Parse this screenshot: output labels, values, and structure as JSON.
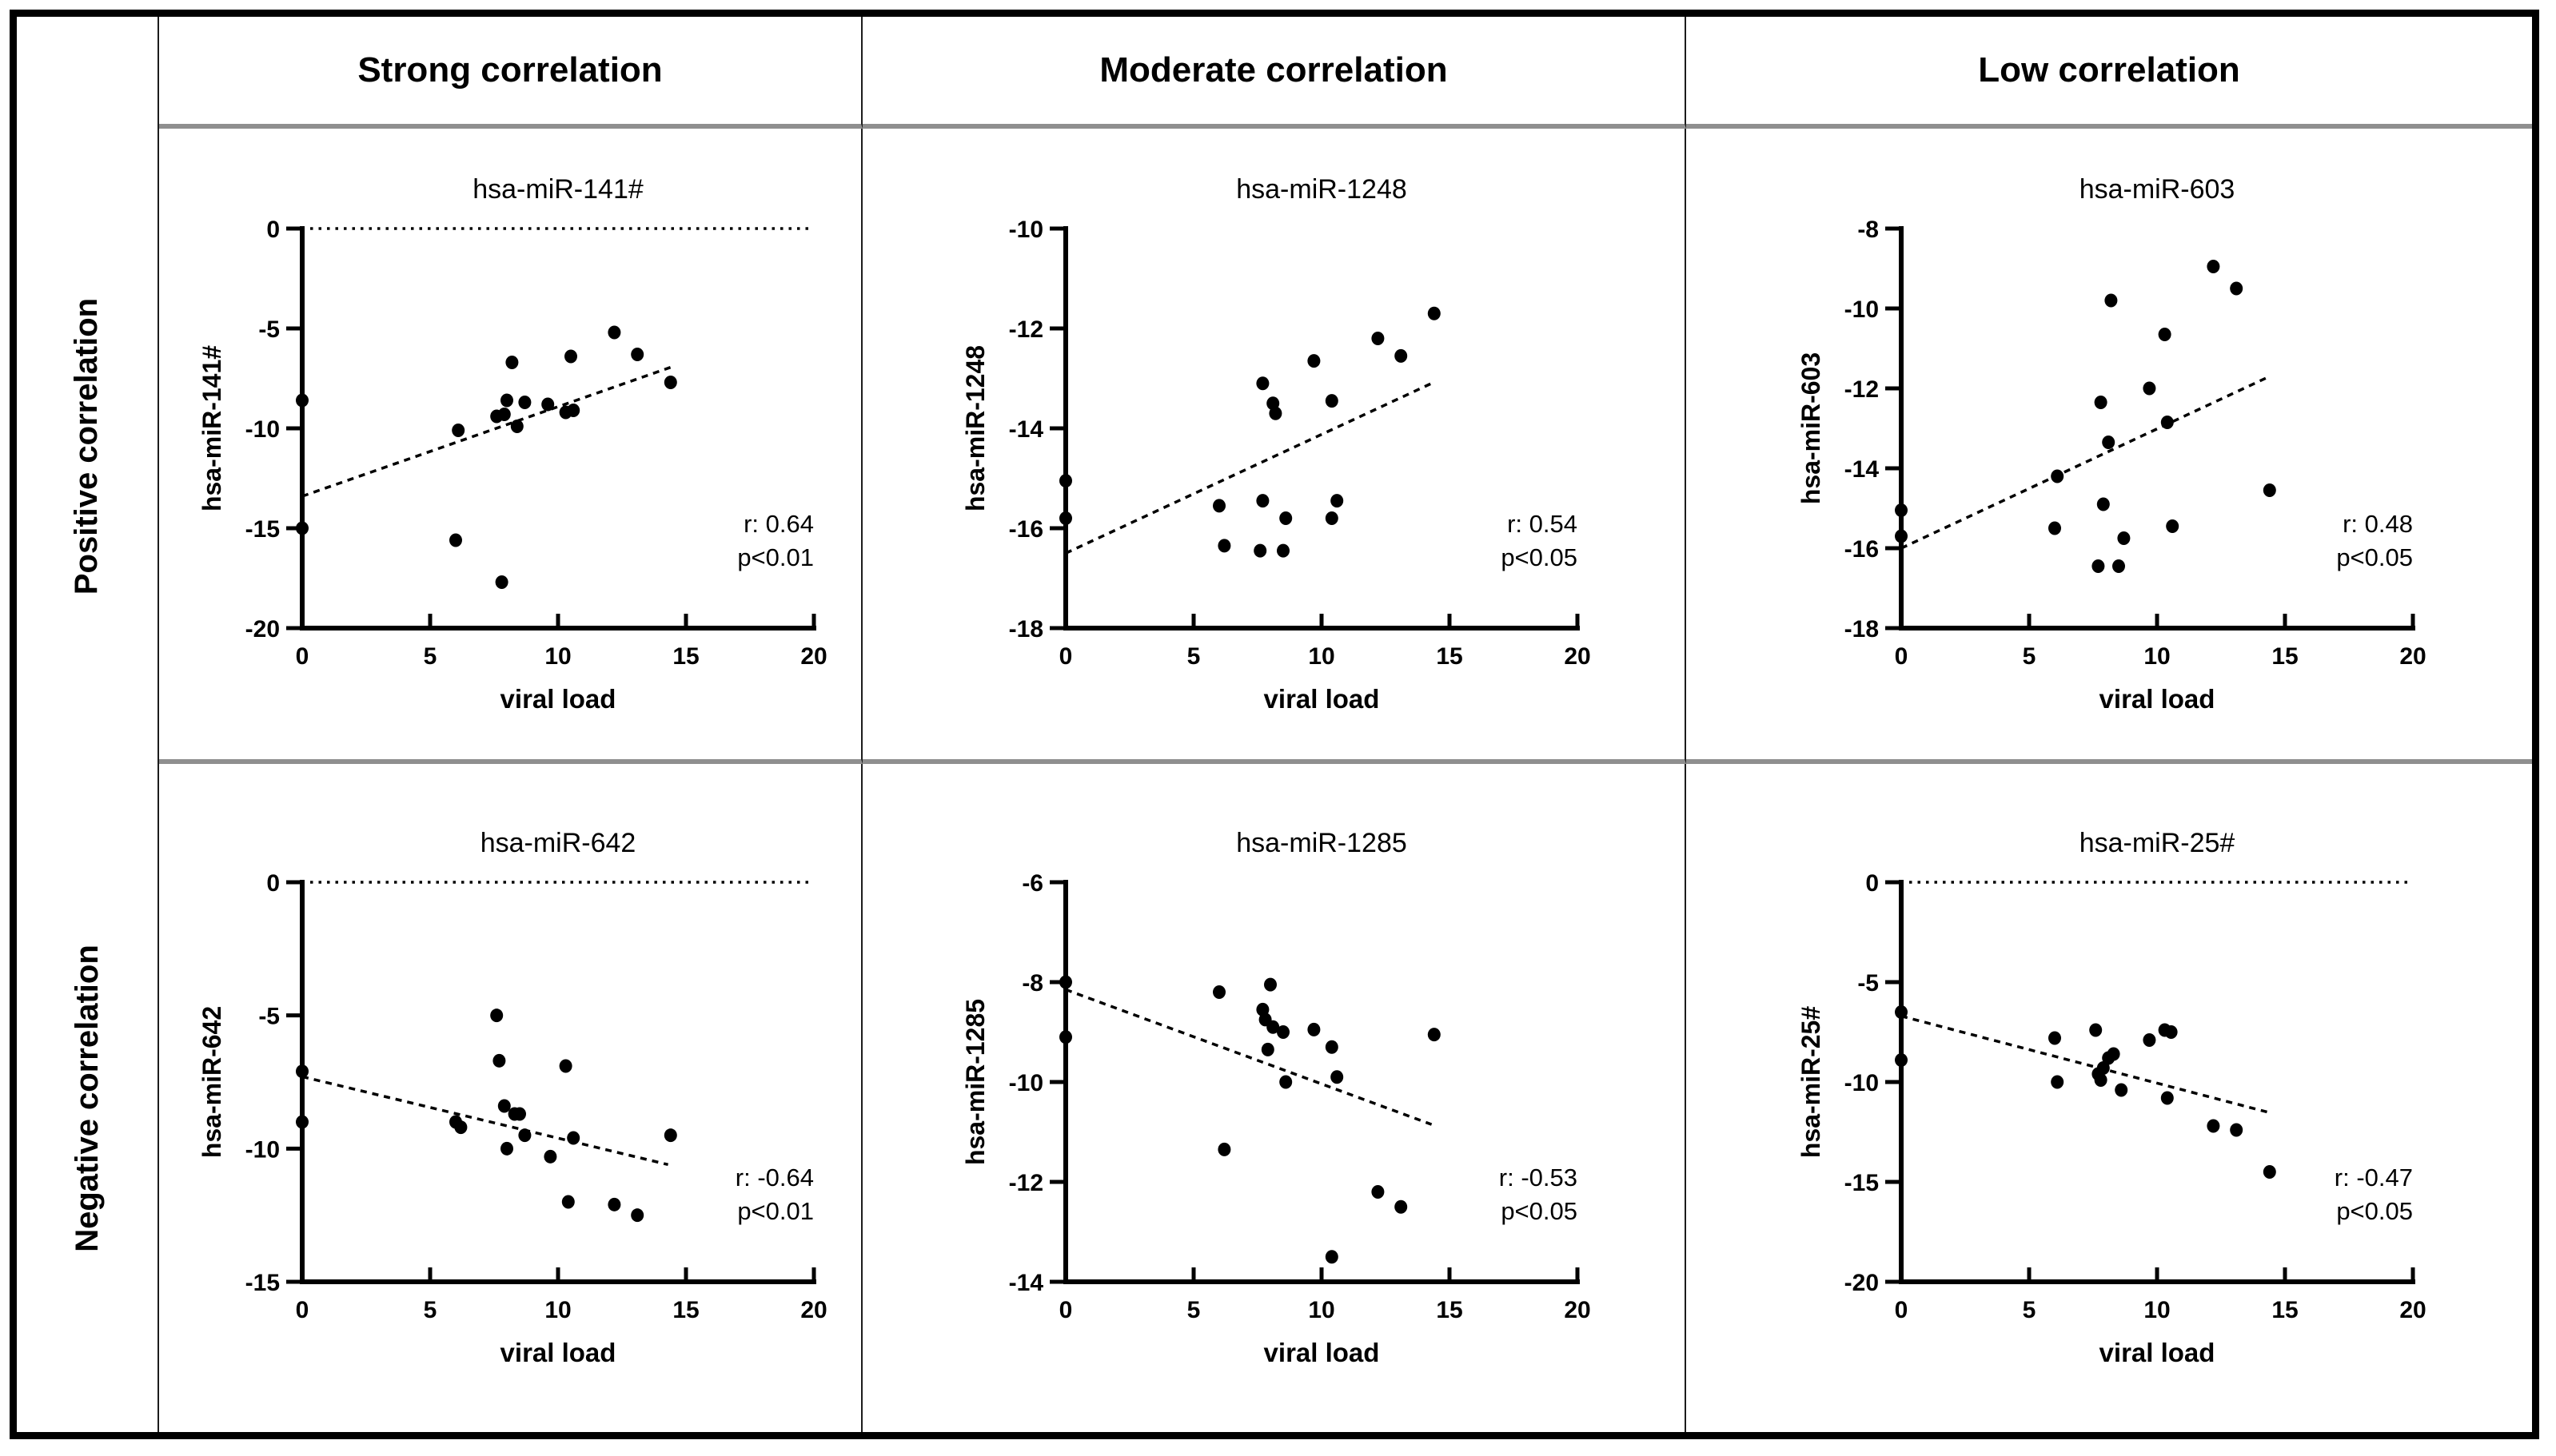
{
  "table": {
    "column_headers": [
      "Strong correlation",
      "Moderate correlation",
      "Low correlation"
    ],
    "row_headers": [
      "Positive correlation",
      "Negative correlation"
    ]
  },
  "colors": {
    "ink": "#000000",
    "divider_gray": "#8f8f8f",
    "background": "#ffffff"
  },
  "chart_data": [
    {
      "type": "scatter",
      "grid_position": {
        "row": "Positive correlation",
        "column": "Strong correlation"
      },
      "title": "hsa-miR-141#",
      "xlabel": "viral load",
      "ylabel": "hsa-miR-141#",
      "xlim": [
        0,
        20
      ],
      "xticks": [
        0,
        5,
        10,
        15,
        20
      ],
      "ylim": [
        -20,
        0
      ],
      "yticks": [
        0,
        -5,
        -10,
        -15,
        -20
      ],
      "zero_reference_line": true,
      "trend_line": {
        "x1": 0,
        "y1": -13.4,
        "x2": 14.5,
        "y2": -6.9
      },
      "annotation": {
        "r_text": "r: 0.64",
        "p_text": "p<0.01"
      },
      "points": [
        [
          0,
          -8.6
        ],
        [
          0,
          -15.0
        ],
        [
          6.1,
          -10.1
        ],
        [
          6.0,
          -15.6
        ],
        [
          7.8,
          -17.7
        ],
        [
          7.6,
          -9.4
        ],
        [
          7.9,
          -9.3
        ],
        [
          8.0,
          -8.6
        ],
        [
          8.2,
          -6.7
        ],
        [
          8.4,
          -9.9
        ],
        [
          8.7,
          -8.7
        ],
        [
          9.6,
          -8.8
        ],
        [
          10.3,
          -9.2
        ],
        [
          10.6,
          -9.1
        ],
        [
          10.5,
          -6.4
        ],
        [
          12.2,
          -5.2
        ],
        [
          13.1,
          -6.3
        ],
        [
          14.4,
          -7.7
        ]
      ]
    },
    {
      "type": "scatter",
      "grid_position": {
        "row": "Positive correlation",
        "column": "Moderate correlation"
      },
      "title": "hsa-miR-1248",
      "xlabel": "viral load",
      "ylabel": "hsa-miR-1248",
      "xlim": [
        0,
        20
      ],
      "xticks": [
        0,
        5,
        10,
        15,
        20
      ],
      "ylim": [
        -18,
        -10
      ],
      "yticks": [
        -10,
        -12,
        -14,
        -16,
        -18
      ],
      "zero_reference_line": false,
      "trend_line": {
        "x1": 0,
        "y1": -16.5,
        "x2": 14.3,
        "y2": -13.1
      },
      "annotation": {
        "r_text": "r: 0.54",
        "p_text": "p<0.05"
      },
      "points": [
        [
          0,
          -15.05
        ],
        [
          0,
          -15.8
        ],
        [
          6.0,
          -15.55
        ],
        [
          6.2,
          -16.35
        ],
        [
          7.7,
          -13.1
        ],
        [
          7.7,
          -15.45
        ],
        [
          7.6,
          -16.45
        ],
        [
          8.1,
          -13.5
        ],
        [
          8.2,
          -13.7
        ],
        [
          8.6,
          -15.8
        ],
        [
          8.5,
          -16.45
        ],
        [
          9.7,
          -12.65
        ],
        [
          10.4,
          -13.45
        ],
        [
          10.4,
          -15.8
        ],
        [
          10.6,
          -15.45
        ],
        [
          12.2,
          -12.2
        ],
        [
          13.1,
          -12.55
        ],
        [
          14.4,
          -11.7
        ]
      ]
    },
    {
      "type": "scatter",
      "grid_position": {
        "row": "Positive correlation",
        "column": "Low correlation"
      },
      "title": "hsa-miR-603",
      "xlabel": "viral load",
      "ylabel": "hsa-miR-603",
      "xlim": [
        0,
        20
      ],
      "xticks": [
        0,
        5,
        10,
        15,
        20
      ],
      "ylim": [
        -18,
        -8
      ],
      "yticks": [
        -8,
        -10,
        -12,
        -14,
        -16,
        -18
      ],
      "zero_reference_line": false,
      "trend_line": {
        "x1": 0,
        "y1": -16.0,
        "x2": 14.4,
        "y2": -11.7
      },
      "annotation": {
        "r_text": "r: 0.48",
        "p_text": "p<0.05"
      },
      "points": [
        [
          0,
          -15.05
        ],
        [
          0,
          -15.7
        ],
        [
          6.1,
          -14.2
        ],
        [
          6.0,
          -15.5
        ],
        [
          7.7,
          -16.45
        ],
        [
          7.8,
          -12.35
        ],
        [
          8.2,
          -9.8
        ],
        [
          7.9,
          -14.9
        ],
        [
          8.1,
          -13.35
        ],
        [
          8.5,
          -16.45
        ],
        [
          8.7,
          -15.75
        ],
        [
          9.7,
          -12.0
        ],
        [
          10.3,
          -10.65
        ],
        [
          10.4,
          -12.85
        ],
        [
          10.6,
          -15.45
        ],
        [
          12.2,
          -8.95
        ],
        [
          13.1,
          -9.5
        ],
        [
          14.4,
          -14.55
        ]
      ]
    },
    {
      "type": "scatter",
      "grid_position": {
        "row": "Negative correlation",
        "column": "Strong correlation"
      },
      "title": "hsa-miR-642",
      "xlabel": "viral load",
      "ylabel": "hsa-miR-642",
      "xlim": [
        0,
        20
      ],
      "xticks": [
        0,
        5,
        10,
        15,
        20
      ],
      "ylim": [
        -15,
        0
      ],
      "yticks": [
        0,
        -5,
        -10,
        -15
      ],
      "zero_reference_line": true,
      "trend_line": {
        "x1": 0,
        "y1": -7.3,
        "x2": 14.3,
        "y2": -10.6
      },
      "annotation": {
        "r_text": "r: -0.64",
        "p_text": "p<0.01"
      },
      "points": [
        [
          0,
          -7.1
        ],
        [
          0,
          -9.0
        ],
        [
          6.0,
          -9.0
        ],
        [
          6.2,
          -9.2
        ],
        [
          7.6,
          -5.0
        ],
        [
          7.7,
          -6.7
        ],
        [
          7.9,
          -8.4
        ],
        [
          8.0,
          -10.0
        ],
        [
          8.3,
          -8.7
        ],
        [
          8.5,
          -8.7
        ],
        [
          8.7,
          -9.5
        ],
        [
          9.7,
          -10.3
        ],
        [
          10.3,
          -6.9
        ],
        [
          10.6,
          -9.6
        ],
        [
          10.4,
          -12.0
        ],
        [
          12.2,
          -12.1
        ],
        [
          13.1,
          -12.5
        ],
        [
          14.4,
          -9.5
        ]
      ]
    },
    {
      "type": "scatter",
      "grid_position": {
        "row": "Negative correlation",
        "column": "Moderate correlation"
      },
      "title": "hsa-miR-1285",
      "xlabel": "viral load",
      "ylabel": "hsa-miR-1285",
      "xlim": [
        0,
        20
      ],
      "xticks": [
        0,
        5,
        10,
        15,
        20
      ],
      "ylim": [
        -14,
        -6
      ],
      "yticks": [
        -6,
        -8,
        -10,
        -12,
        -14
      ],
      "zero_reference_line": false,
      "trend_line": {
        "x1": 0,
        "y1": -8.15,
        "x2": 14.3,
        "y2": -10.85
      },
      "annotation": {
        "r_text": "r: -0.53",
        "p_text": "p<0.05"
      },
      "points": [
        [
          0,
          -8.0
        ],
        [
          0,
          -9.1
        ],
        [
          6.0,
          -8.2
        ],
        [
          6.2,
          -11.35
        ],
        [
          7.7,
          -8.55
        ],
        [
          7.8,
          -8.75
        ],
        [
          8.0,
          -8.05
        ],
        [
          7.9,
          -9.35
        ],
        [
          8.1,
          -8.9
        ],
        [
          8.5,
          -9.0
        ],
        [
          8.6,
          -10.0
        ],
        [
          9.7,
          -8.95
        ],
        [
          10.4,
          -9.3
        ],
        [
          10.6,
          -9.9
        ],
        [
          10.4,
          -13.5
        ],
        [
          12.2,
          -12.2
        ],
        [
          13.1,
          -12.5
        ],
        [
          14.4,
          -9.05
        ]
      ]
    },
    {
      "type": "scatter",
      "grid_position": {
        "row": "Negative correlation",
        "column": "Low correlation"
      },
      "title": "hsa-miR-25#",
      "xlabel": "viral load",
      "ylabel": "hsa-miR-25#",
      "xlim": [
        0,
        20
      ],
      "xticks": [
        0,
        5,
        10,
        15,
        20
      ],
      "ylim": [
        -20,
        0
      ],
      "yticks": [
        0,
        -5,
        -10,
        -15,
        -20
      ],
      "zero_reference_line": true,
      "trend_line": {
        "x1": 0,
        "y1": -6.7,
        "x2": 14.3,
        "y2": -11.5
      },
      "annotation": {
        "r_text": "r: -0.47",
        "p_text": "p<0.05"
      },
      "points": [
        [
          0,
          -6.5
        ],
        [
          0,
          -8.9
        ],
        [
          6.0,
          -7.8
        ],
        [
          6.1,
          -10.0
        ],
        [
          7.6,
          -7.4
        ],
        [
          7.7,
          -9.6
        ],
        [
          7.8,
          -9.9
        ],
        [
          7.9,
          -9.3
        ],
        [
          8.1,
          -8.8
        ],
        [
          8.3,
          -8.6
        ],
        [
          8.6,
          -10.4
        ],
        [
          9.7,
          -7.9
        ],
        [
          10.3,
          -7.4
        ],
        [
          10.55,
          -7.5
        ],
        [
          10.4,
          -10.8
        ],
        [
          12.2,
          -12.2
        ],
        [
          13.1,
          -12.4
        ],
        [
          14.4,
          -14.5
        ]
      ]
    }
  ]
}
